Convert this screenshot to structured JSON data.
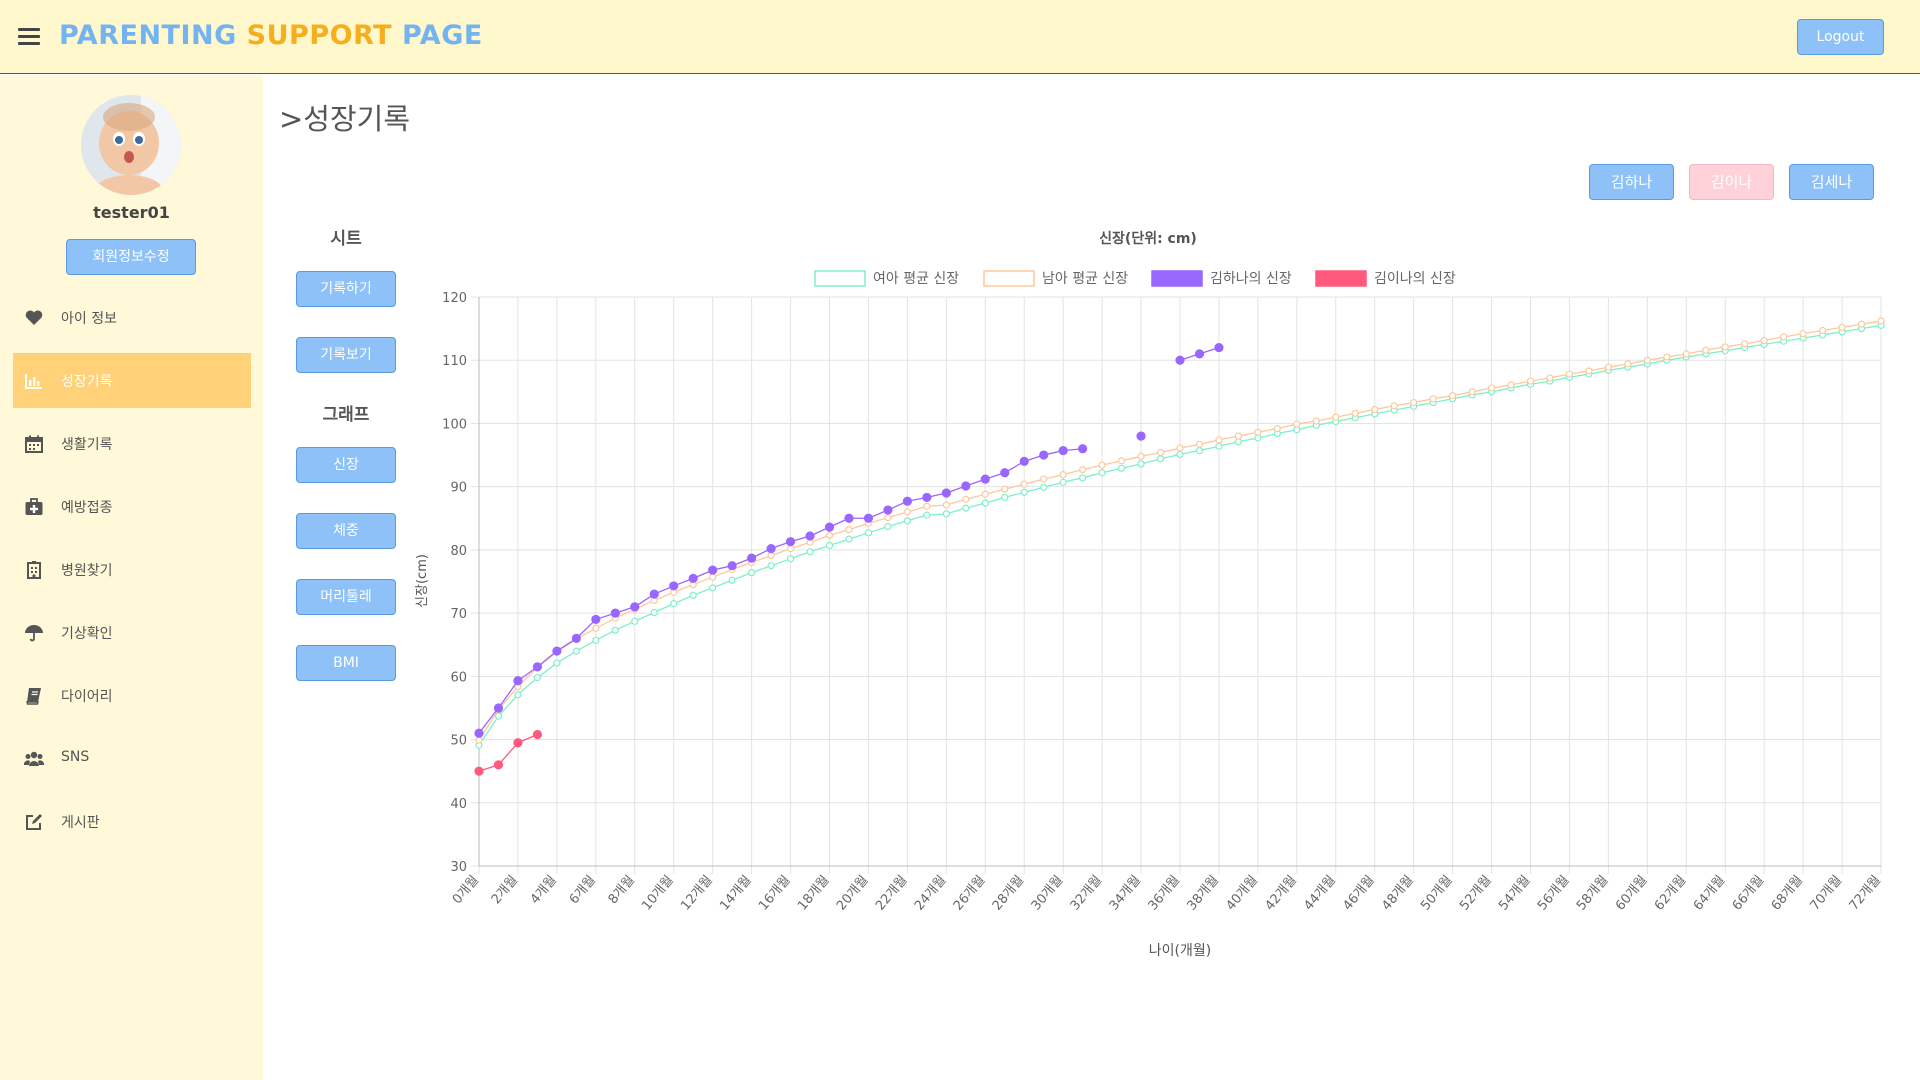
{
  "header": {
    "brand_part1": "PARENTING",
    "brand_part2": "SUPPORT",
    "brand_part3": "PAGE",
    "logout_label": "Logout"
  },
  "sidebar": {
    "username": "tester01",
    "edit_profile_label": "회원정보수정",
    "items": [
      {
        "label": "아이 정보",
        "icon": "heart-icon"
      },
      {
        "label": "성장기록",
        "icon": "bar-chart-icon",
        "active": true
      },
      {
        "label": "생활기록",
        "icon": "calendar-icon"
      },
      {
        "label": "예방접종",
        "icon": "medkit-icon"
      },
      {
        "label": "병원찾기",
        "icon": "hospital-icon"
      },
      {
        "label": "기상확인",
        "icon": "umbrella-icon"
      },
      {
        "label": "다이어리",
        "icon": "book-icon"
      },
      {
        "label": "SNS",
        "icon": "users-icon"
      },
      {
        "label": "게시판",
        "icon": "edit-icon"
      }
    ]
  },
  "main": {
    "title": ">성장기록",
    "children": [
      {
        "label": "김하나",
        "state": "active"
      },
      {
        "label": "김이나",
        "state": "disabled"
      },
      {
        "label": "김세나",
        "state": "active"
      }
    ],
    "sheet_heading": "시트",
    "sheet_buttons": [
      "기록하기",
      "기록보기"
    ],
    "graph_heading": "그래프",
    "graph_buttons": [
      "신장",
      "체중",
      "머리둘레",
      "BMI"
    ]
  },
  "colors": {
    "header_bg": "#fff8cc",
    "sidebar_bg": "#fff8d9",
    "active_nav": "#ffd27a",
    "button_blue": "#8dc1f7",
    "brand_blue": "#74b3f2",
    "brand_orange": "#f6ae1c"
  },
  "chart_data": {
    "type": "line",
    "title": "신장(단위: cm)",
    "xlabel": "나이(개월)",
    "ylabel": "신장(cm)",
    "ylim": [
      30,
      120
    ],
    "yticks": [
      30,
      40,
      50,
      60,
      70,
      80,
      90,
      100,
      110,
      120
    ],
    "xlim": [
      0,
      72
    ],
    "x_tick_step": 2,
    "x_tick_suffix": "개월",
    "grid": true,
    "legend_position": "top",
    "series": [
      {
        "name": "여아 평균 신장",
        "color": "#7df0c8",
        "style": "hollow-points",
        "x": [
          0,
          1,
          2,
          3,
          4,
          5,
          6,
          7,
          8,
          9,
          10,
          11,
          12,
          13,
          14,
          15,
          16,
          17,
          18,
          19,
          20,
          21,
          22,
          23,
          24,
          25,
          26,
          27,
          28,
          29,
          30,
          31,
          32,
          33,
          34,
          35,
          36,
          37,
          38,
          39,
          40,
          41,
          42,
          43,
          44,
          45,
          46,
          47,
          48,
          49,
          50,
          51,
          52,
          53,
          54,
          55,
          56,
          57,
          58,
          59,
          60,
          61,
          62,
          63,
          64,
          65,
          66,
          67,
          68,
          69,
          70,
          71,
          72
        ],
        "values": [
          49.1,
          53.7,
          57.1,
          59.8,
          62.1,
          64.0,
          65.7,
          67.3,
          68.7,
          70.1,
          71.5,
          72.8,
          74.0,
          75.2,
          76.4,
          77.5,
          78.6,
          79.7,
          80.7,
          81.7,
          82.7,
          83.7,
          84.6,
          85.5,
          85.7,
          86.6,
          87.4,
          88.3,
          89.1,
          89.9,
          90.7,
          91.4,
          92.2,
          92.9,
          93.6,
          94.4,
          95.1,
          95.7,
          96.4,
          97.1,
          97.7,
          98.4,
          99.0,
          99.7,
          100.3,
          100.9,
          101.5,
          102.1,
          102.7,
          103.3,
          103.9,
          104.5,
          105.0,
          105.6,
          106.2,
          106.7,
          107.3,
          107.8,
          108.4,
          108.9,
          109.4,
          110.0,
          110.5,
          111.0,
          111.5,
          112.0,
          112.5,
          113.0,
          113.5,
          114.0,
          114.5,
          115.0,
          115.5
        ]
      },
      {
        "name": "남아 평균 신장",
        "color": "#fdc89b",
        "style": "hollow-points",
        "x": [
          0,
          1,
          2,
          3,
          4,
          5,
          6,
          7,
          8,
          9,
          10,
          11,
          12,
          13,
          14,
          15,
          16,
          17,
          18,
          19,
          20,
          21,
          22,
          23,
          24,
          25,
          26,
          27,
          28,
          29,
          30,
          31,
          32,
          33,
          34,
          35,
          36,
          37,
          38,
          39,
          40,
          41,
          42,
          43,
          44,
          45,
          46,
          47,
          48,
          49,
          50,
          51,
          52,
          53,
          54,
          55,
          56,
          57,
          58,
          59,
          60,
          61,
          62,
          63,
          64,
          65,
          66,
          67,
          68,
          69,
          70,
          71,
          72
        ],
        "values": [
          49.9,
          54.7,
          58.4,
          61.4,
          63.9,
          65.9,
          67.6,
          69.2,
          70.6,
          72.0,
          73.3,
          74.5,
          75.7,
          76.9,
          78.0,
          79.1,
          80.2,
          81.2,
          82.3,
          83.2,
          84.2,
          85.1,
          86.0,
          86.9,
          87.1,
          88.0,
          88.8,
          89.6,
          90.4,
          91.2,
          91.9,
          92.7,
          93.4,
          94.1,
          94.8,
          95.4,
          96.1,
          96.7,
          97.4,
          98.0,
          98.6,
          99.2,
          99.9,
          100.4,
          101.0,
          101.6,
          102.2,
          102.8,
          103.3,
          103.9,
          104.4,
          105.0,
          105.6,
          106.1,
          106.7,
          107.2,
          107.8,
          108.3,
          108.9,
          109.4,
          110.0,
          110.5,
          111.0,
          111.6,
          112.1,
          112.6,
          113.1,
          113.7,
          114.2,
          114.7,
          115.2,
          115.7,
          116.2
        ]
      },
      {
        "name": "김하나의 신장",
        "color": "#9966ff",
        "style": "filled-points",
        "x": [
          0,
          1,
          2,
          3,
          4,
          5,
          6,
          7,
          8,
          9,
          10,
          11,
          12,
          13,
          14,
          15,
          16,
          17,
          18,
          19,
          20,
          21,
          22,
          23,
          24,
          25,
          26,
          27,
          28,
          29,
          30,
          31,
          34,
          36,
          37,
          38
        ],
        "values": [
          51,
          55,
          59.3,
          61.5,
          64,
          66,
          69,
          70,
          71,
          73,
          74.3,
          75.5,
          76.8,
          77.5,
          78.7,
          80.2,
          81.3,
          82.2,
          83.6,
          85,
          85,
          86.3,
          87.7,
          88.3,
          89,
          90.1,
          91.2,
          92.2,
          94,
          95,
          95.7,
          96,
          98,
          110,
          111,
          112
        ]
      },
      {
        "name": "김이나의 신장",
        "color": "#ff5a7d",
        "style": "filled-points",
        "x": [
          0,
          1,
          2,
          3
        ],
        "values": [
          45,
          46,
          49.5,
          50.8
        ]
      }
    ]
  }
}
